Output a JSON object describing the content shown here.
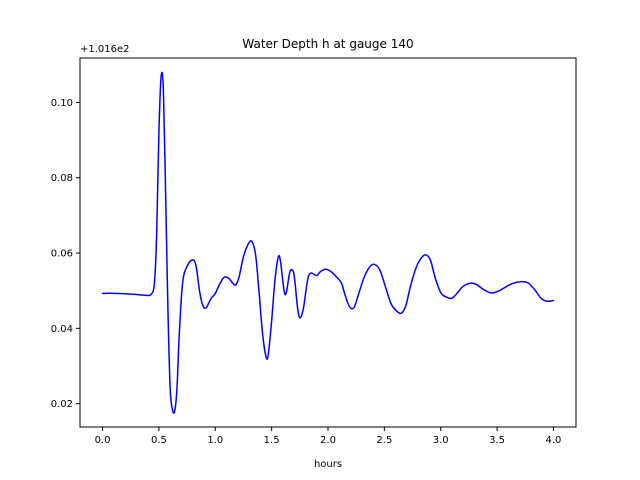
{
  "chart_data": {
    "type": "line",
    "title": "Water Depth h at gauge 140",
    "xlabel": "hours",
    "ylabel": "",
    "y_offset_label": "+1.016e2",
    "y_offset": 101.6,
    "xlim": [
      -0.2,
      4.2
    ],
    "ylim": [
      0.0138,
      0.1118
    ],
    "x_ticks": [
      0.0,
      0.5,
      1.0,
      1.5,
      2.0,
      2.5,
      3.0,
      3.5,
      4.0
    ],
    "x_tick_labels": [
      "0.0",
      "0.5",
      "1.0",
      "1.5",
      "2.0",
      "2.5",
      "3.0",
      "3.5",
      "4.0"
    ],
    "y_ticks": [
      0.02,
      0.04,
      0.06,
      0.08,
      0.1
    ],
    "y_tick_labels": [
      "0.02",
      "0.04",
      "0.06",
      "0.08",
      "0.10"
    ],
    "grid": false,
    "series": [
      {
        "color": "#0000ff",
        "points": [
          [
            0.0,
            0.0493
          ],
          [
            0.1,
            0.0493
          ],
          [
            0.2,
            0.0492
          ],
          [
            0.3,
            0.049
          ],
          [
            0.38,
            0.0488
          ],
          [
            0.43,
            0.049
          ],
          [
            0.46,
            0.052
          ],
          [
            0.48,
            0.065
          ],
          [
            0.5,
            0.092
          ],
          [
            0.52,
            0.107
          ],
          [
            0.54,
            0.103
          ],
          [
            0.56,
            0.075
          ],
          [
            0.58,
            0.045
          ],
          [
            0.6,
            0.024
          ],
          [
            0.62,
            0.0185
          ],
          [
            0.64,
            0.018
          ],
          [
            0.66,
            0.024
          ],
          [
            0.68,
            0.038
          ],
          [
            0.71,
            0.052
          ],
          [
            0.75,
            0.0565
          ],
          [
            0.8,
            0.0582
          ],
          [
            0.83,
            0.0565
          ],
          [
            0.86,
            0.05
          ],
          [
            0.89,
            0.046
          ],
          [
            0.92,
            0.0455
          ],
          [
            0.96,
            0.0478
          ],
          [
            1.0,
            0.0493
          ],
          [
            1.04,
            0.0518
          ],
          [
            1.08,
            0.0536
          ],
          [
            1.12,
            0.0533
          ],
          [
            1.15,
            0.0522
          ],
          [
            1.18,
            0.0515
          ],
          [
            1.21,
            0.0535
          ],
          [
            1.25,
            0.059
          ],
          [
            1.3,
            0.0628
          ],
          [
            1.33,
            0.0628
          ],
          [
            1.36,
            0.059
          ],
          [
            1.39,
            0.049
          ],
          [
            1.42,
            0.0385
          ],
          [
            1.45,
            0.0325
          ],
          [
            1.47,
            0.033
          ],
          [
            1.5,
            0.042
          ],
          [
            1.53,
            0.053
          ],
          [
            1.56,
            0.059
          ],
          [
            1.58,
            0.0575
          ],
          [
            1.61,
            0.05
          ],
          [
            1.63,
            0.0495
          ],
          [
            1.66,
            0.0548
          ],
          [
            1.68,
            0.0555
          ],
          [
            1.7,
            0.054
          ],
          [
            1.73,
            0.0455
          ],
          [
            1.75,
            0.0428
          ],
          [
            1.78,
            0.045
          ],
          [
            1.82,
            0.053
          ],
          [
            1.85,
            0.0547
          ],
          [
            1.9,
            0.054
          ],
          [
            1.93,
            0.055
          ],
          [
            1.98,
            0.0557
          ],
          [
            2.03,
            0.055
          ],
          [
            2.08,
            0.0535
          ],
          [
            2.12,
            0.052
          ],
          [
            2.15,
            0.049
          ],
          [
            2.19,
            0.0458
          ],
          [
            2.23,
            0.0455
          ],
          [
            2.27,
            0.049
          ],
          [
            2.32,
            0.0535
          ],
          [
            2.37,
            0.0563
          ],
          [
            2.41,
            0.057
          ],
          [
            2.46,
            0.0555
          ],
          [
            2.51,
            0.051
          ],
          [
            2.56,
            0.0465
          ],
          [
            2.61,
            0.0446
          ],
          [
            2.65,
            0.044
          ],
          [
            2.69,
            0.046
          ],
          [
            2.73,
            0.051
          ],
          [
            2.78,
            0.056
          ],
          [
            2.83,
            0.0588
          ],
          [
            2.87,
            0.0595
          ],
          [
            2.91,
            0.058
          ],
          [
            2.95,
            0.0535
          ],
          [
            3.0,
            0.0495
          ],
          [
            3.05,
            0.0483
          ],
          [
            3.1,
            0.048
          ],
          [
            3.15,
            0.0495
          ],
          [
            3.2,
            0.0512
          ],
          [
            3.27,
            0.052
          ],
          [
            3.32,
            0.0516
          ],
          [
            3.38,
            0.0503
          ],
          [
            3.45,
            0.0494
          ],
          [
            3.52,
            0.05
          ],
          [
            3.6,
            0.0514
          ],
          [
            3.67,
            0.0522
          ],
          [
            3.73,
            0.0524
          ],
          [
            3.78,
            0.052
          ],
          [
            3.84,
            0.05
          ],
          [
            3.89,
            0.048
          ],
          [
            3.94,
            0.0472
          ],
          [
            4.0,
            0.0474
          ]
        ]
      }
    ]
  }
}
